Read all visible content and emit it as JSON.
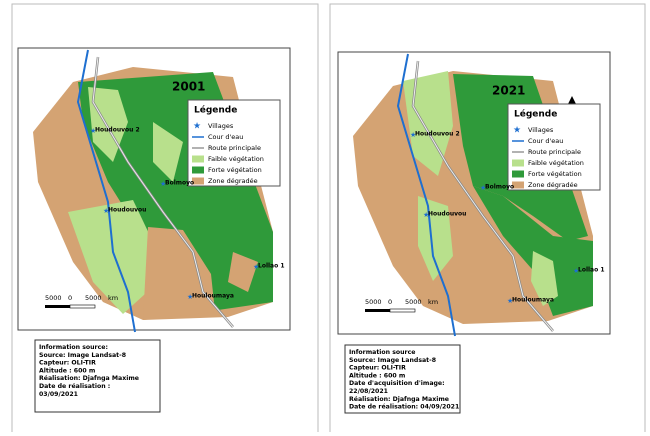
{
  "maps": [
    {
      "year": "2001",
      "legend": {
        "title": "Légende",
        "items": [
          "Villages",
          "Cour d'eau",
          "Route principale",
          "Faible végétation",
          "Forte végétation",
          "Zone dégradée"
        ]
      },
      "villages": [
        "Houdouvou 2",
        "Bolmoyo",
        "Houdouvou",
        "Lollao 1",
        "Houloumaya"
      ],
      "scale": [
        "5000",
        "0",
        "5000",
        "km"
      ],
      "info": [
        "Information source:",
        "Source: Image Landsat-8",
        "Capteur: OLI-TIR",
        "Altitude : 600 m",
        "Réalisation: Djafnga Maxime",
        "Date de réalisation :",
        "03/09/2021"
      ]
    },
    {
      "year": "2021",
      "legend": {
        "title": "Légende",
        "items": [
          "Villages",
          "Cour d'eau",
          "Route principale",
          "Faible végétation",
          "Forte végétation",
          "Zone dégradée"
        ]
      },
      "villages": [
        "Houdouvou 2",
        "Bolmoyo",
        "Houdouvou",
        "Lollao 1",
        "Houloumaya"
      ],
      "scale": [
        "5000",
        "0",
        "5000",
        "km"
      ],
      "info": [
        "Information source",
        "Source: Image Landsat-8",
        "Capteur: OLI-TIR",
        "Altitude : 600 m",
        "Date d'acquisition d'image:",
        "22/08/2021",
        "Réalisation: Djafnga Maxime",
        "Date de réalisation: 04/09/2021"
      ]
    }
  ]
}
